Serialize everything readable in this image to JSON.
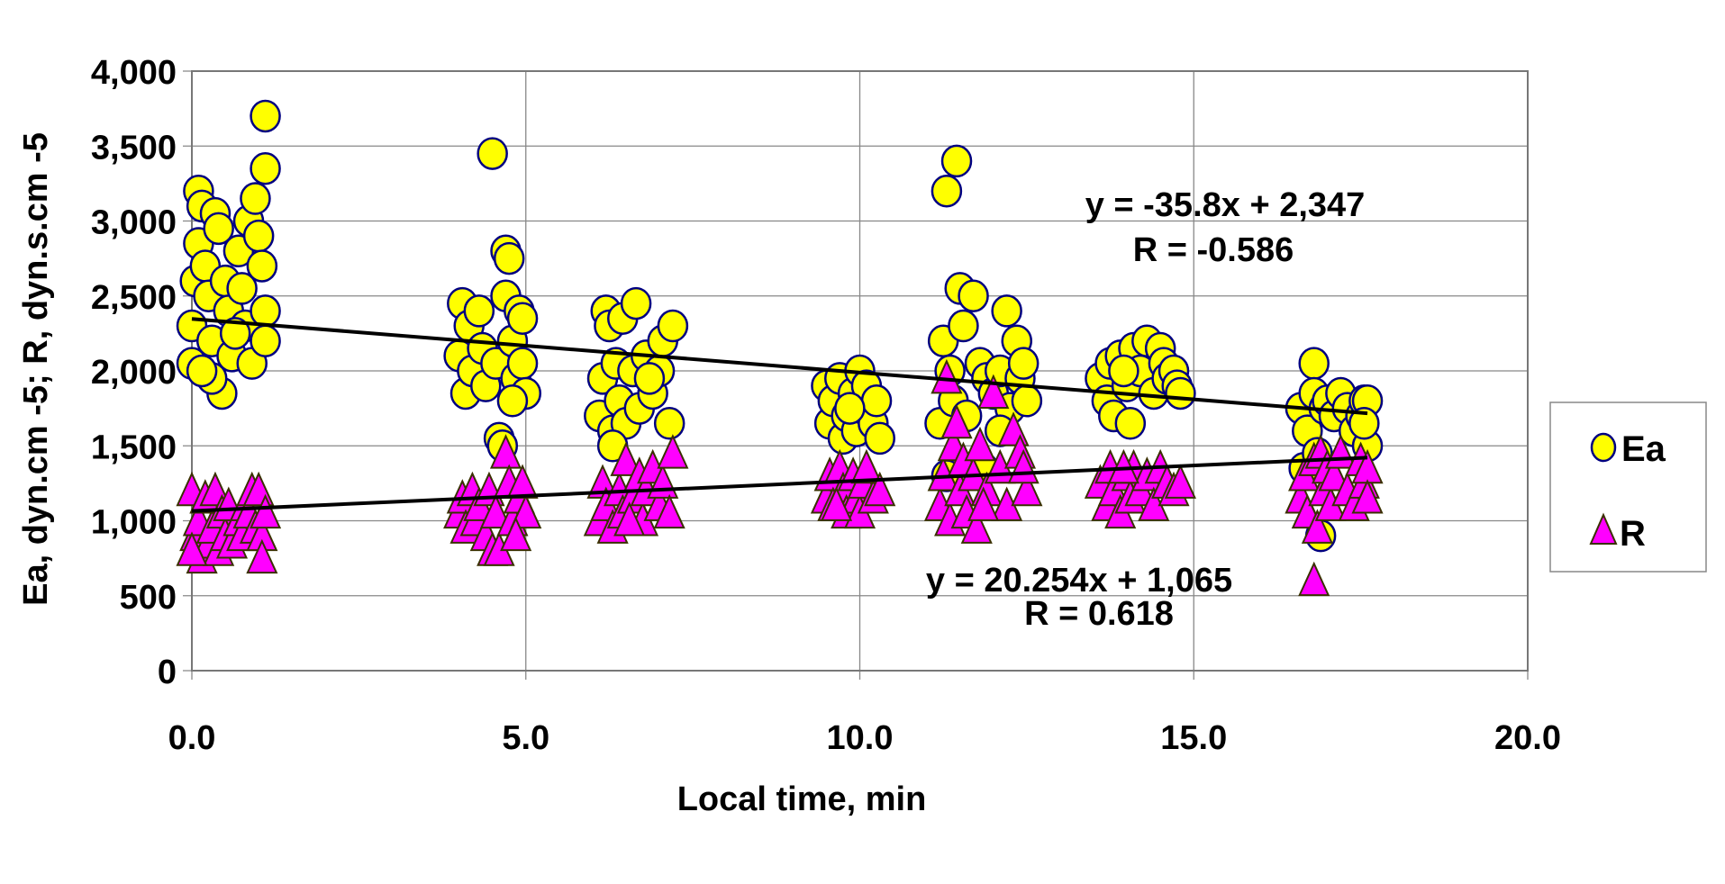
{
  "chart_data": {
    "type": "scatter",
    "title": "",
    "xlabel": "Local time, min",
    "ylabel": "Ea, dyn.cm -5; R, dyn.s.cm -5",
    "xlim": [
      0,
      20
    ],
    "ylim": [
      0,
      4000
    ],
    "grid": true,
    "legend_position": "right",
    "x_ticks": [
      "0.0",
      "5.0",
      "10.0",
      "15.0",
      "20.0"
    ],
    "y_ticks": [
      "0",
      "500",
      "1,000",
      "1,500",
      "2,000",
      "2,500",
      "3,000",
      "3,500",
      "4,000"
    ],
    "series": [
      {
        "name": "Ea",
        "marker": "circle",
        "color": "#ffff00",
        "edge": "#000080",
        "points": [
          [
            0,
            2300
          ],
          [
            0.05,
            2600
          ],
          [
            0.1,
            3200
          ],
          [
            0.15,
            3100
          ],
          [
            0.1,
            2850
          ],
          [
            0.2,
            2700
          ],
          [
            0.25,
            2500
          ],
          [
            0.3,
            2200
          ],
          [
            0.35,
            3050
          ],
          [
            0.4,
            2950
          ],
          [
            0.45,
            1850
          ],
          [
            0.3,
            1950
          ],
          [
            0.5,
            2600
          ],
          [
            0.55,
            2400
          ],
          [
            0.6,
            2100
          ],
          [
            0.7,
            2800
          ],
          [
            0.75,
            2550
          ],
          [
            0.8,
            2300
          ],
          [
            0.85,
            3000
          ],
          [
            0.9,
            2050
          ],
          [
            0.95,
            3150
          ],
          [
            1.0,
            2900
          ],
          [
            1.05,
            2700
          ],
          [
            1.1,
            3350
          ],
          [
            1.1,
            3700
          ],
          [
            1.1,
            2400
          ],
          [
            1.1,
            2200
          ],
          [
            0.0,
            2050
          ],
          [
            0.15,
            2000
          ],
          [
            0.65,
            2250
          ],
          [
            4.0,
            2100
          ],
          [
            4.05,
            2450
          ],
          [
            4.1,
            1850
          ],
          [
            4.15,
            2300
          ],
          [
            4.2,
            2000
          ],
          [
            4.3,
            2400
          ],
          [
            4.35,
            2150
          ],
          [
            4.4,
            1900
          ],
          [
            4.5,
            3450
          ],
          [
            4.55,
            2050
          ],
          [
            4.6,
            1550
          ],
          [
            4.65,
            1500
          ],
          [
            4.7,
            2800
          ],
          [
            4.75,
            2750
          ],
          [
            4.7,
            2500
          ],
          [
            4.8,
            2200
          ],
          [
            4.85,
            1950
          ],
          [
            4.9,
            2400
          ],
          [
            4.95,
            2350
          ],
          [
            4.95,
            2050
          ],
          [
            5.0,
            1850
          ],
          [
            4.8,
            1800
          ],
          [
            6.1,
            1700
          ],
          [
            6.15,
            1950
          ],
          [
            6.2,
            2400
          ],
          [
            6.25,
            2300
          ],
          [
            6.3,
            1600
          ],
          [
            6.35,
            2050
          ],
          [
            6.4,
            1800
          ],
          [
            6.45,
            2350
          ],
          [
            6.5,
            1650
          ],
          [
            6.6,
            2000
          ],
          [
            6.65,
            2450
          ],
          [
            6.7,
            1750
          ],
          [
            6.8,
            2100
          ],
          [
            6.9,
            1850
          ],
          [
            7.0,
            2000
          ],
          [
            7.05,
            2200
          ],
          [
            7.15,
            1650
          ],
          [
            7.2,
            2300
          ],
          [
            6.3,
            1500
          ],
          [
            6.85,
            1950
          ],
          [
            9.5,
            1900
          ],
          [
            9.55,
            1650
          ],
          [
            9.6,
            1800
          ],
          [
            9.7,
            1950
          ],
          [
            9.75,
            1550
          ],
          [
            9.8,
            1700
          ],
          [
            9.9,
            1850
          ],
          [
            9.95,
            1600
          ],
          [
            10.0,
            2000
          ],
          [
            10.05,
            1750
          ],
          [
            10.1,
            1900
          ],
          [
            10.2,
            1650
          ],
          [
            10.25,
            1800
          ],
          [
            10.3,
            1550
          ],
          [
            9.85,
            1750
          ],
          [
            11.2,
            1650
          ],
          [
            11.25,
            2200
          ],
          [
            11.3,
            3200
          ],
          [
            11.35,
            2000
          ],
          [
            11.4,
            1800
          ],
          [
            11.45,
            3400
          ],
          [
            11.5,
            2550
          ],
          [
            11.55,
            2300
          ],
          [
            11.6,
            1700
          ],
          [
            11.7,
            2500
          ],
          [
            11.8,
            2050
          ],
          [
            11.85,
            1350
          ],
          [
            11.9,
            1950
          ],
          [
            12.0,
            1850
          ],
          [
            12.1,
            2000
          ],
          [
            12.2,
            2400
          ],
          [
            12.25,
            1750
          ],
          [
            12.35,
            2200
          ],
          [
            12.4,
            1950
          ],
          [
            12.45,
            2050
          ],
          [
            12.5,
            1800
          ],
          [
            11.3,
            1300
          ],
          [
            12.1,
            1600
          ],
          [
            13.6,
            1950
          ],
          [
            13.7,
            1800
          ],
          [
            13.75,
            2050
          ],
          [
            13.8,
            1700
          ],
          [
            13.9,
            2100
          ],
          [
            14.0,
            1900
          ],
          [
            14.05,
            1650
          ],
          [
            14.1,
            2150
          ],
          [
            14.2,
            2000
          ],
          [
            14.3,
            2200
          ],
          [
            14.4,
            1850
          ],
          [
            14.5,
            2150
          ],
          [
            14.55,
            2050
          ],
          [
            14.6,
            1950
          ],
          [
            14.7,
            2000
          ],
          [
            14.75,
            1900
          ],
          [
            14.8,
            1850
          ],
          [
            13.95,
            2000
          ],
          [
            16.6,
            1750
          ],
          [
            16.65,
            1350
          ],
          [
            16.7,
            1600
          ],
          [
            16.8,
            2050
          ],
          [
            16.8,
            1850
          ],
          [
            16.85,
            1450
          ],
          [
            16.9,
            900
          ],
          [
            16.95,
            1750
          ],
          [
            17.0,
            1800
          ],
          [
            17.1,
            1700
          ],
          [
            17.2,
            1850
          ],
          [
            17.3,
            1750
          ],
          [
            17.4,
            1600
          ],
          [
            17.5,
            1700
          ],
          [
            17.55,
            1800
          ],
          [
            17.6,
            1800
          ],
          [
            17.6,
            1500
          ],
          [
            17.55,
            1650
          ]
        ],
        "trendline": {
          "slope": -35.8,
          "intercept": 2347,
          "x_range": [
            0,
            17.6
          ],
          "equation": "y = -35.8x + 2,347",
          "r_label": "R = -0.586"
        }
      },
      {
        "name": "R",
        "marker": "triangle",
        "color": "#ff00ff",
        "edge": "#3a3000",
        "points": [
          [
            0,
            1200
          ],
          [
            0.05,
            900
          ],
          [
            0.1,
            1000
          ],
          [
            0.15,
            750
          ],
          [
            0.2,
            1150
          ],
          [
            0.25,
            850
          ],
          [
            0.3,
            950
          ],
          [
            0.35,
            1200
          ],
          [
            0.4,
            800
          ],
          [
            0.45,
            1050
          ],
          [
            0.5,
            900
          ],
          [
            0.55,
            1100
          ],
          [
            0.6,
            850
          ],
          [
            0.7,
            1000
          ],
          [
            0.75,
            900
          ],
          [
            0.8,
            1100
          ],
          [
            0.85,
            1050
          ],
          [
            0.9,
            1200
          ],
          [
            0.95,
            950
          ],
          [
            1.0,
            1200
          ],
          [
            1.05,
            900
          ],
          [
            1.05,
            750
          ],
          [
            0.0,
            800
          ],
          [
            1.1,
            1050
          ],
          [
            4.0,
            1050
          ],
          [
            4.05,
            1150
          ],
          [
            4.1,
            950
          ],
          [
            4.2,
            1200
          ],
          [
            4.25,
            1000
          ],
          [
            4.3,
            1100
          ],
          [
            4.4,
            900
          ],
          [
            4.45,
            1200
          ],
          [
            4.5,
            800
          ],
          [
            4.55,
            1050
          ],
          [
            4.6,
            800
          ],
          [
            4.7,
            1450
          ],
          [
            4.75,
            1250
          ],
          [
            4.8,
            1000
          ],
          [
            4.9,
            1150
          ],
          [
            4.95,
            1250
          ],
          [
            5.0,
            1050
          ],
          [
            4.85,
            900
          ],
          [
            6.1,
            1000
          ],
          [
            6.15,
            1250
          ],
          [
            6.2,
            1100
          ],
          [
            6.3,
            950
          ],
          [
            6.4,
            1200
          ],
          [
            6.45,
            1050
          ],
          [
            6.5,
            1400
          ],
          [
            6.6,
            1150
          ],
          [
            6.7,
            1300
          ],
          [
            6.75,
            1000
          ],
          [
            6.8,
            1200
          ],
          [
            6.9,
            1350
          ],
          [
            7.0,
            1100
          ],
          [
            7.05,
            1250
          ],
          [
            7.15,
            1050
          ],
          [
            7.2,
            1450
          ],
          [
            6.55,
            1000
          ],
          [
            9.5,
            1150
          ],
          [
            9.55,
            1300
          ],
          [
            9.6,
            1100
          ],
          [
            9.7,
            1350
          ],
          [
            9.75,
            1200
          ],
          [
            9.8,
            1050
          ],
          [
            9.9,
            1300
          ],
          [
            9.95,
            1150
          ],
          [
            10.0,
            1050
          ],
          [
            10.05,
            1250
          ],
          [
            10.1,
            1350
          ],
          [
            10.2,
            1150
          ],
          [
            10.3,
            1200
          ],
          [
            9.65,
            1100
          ],
          [
            11.2,
            1100
          ],
          [
            11.25,
            1300
          ],
          [
            11.3,
            1950
          ],
          [
            11.35,
            1000
          ],
          [
            11.4,
            1500
          ],
          [
            11.45,
            1650
          ],
          [
            11.5,
            1200
          ],
          [
            11.55,
            1400
          ],
          [
            11.6,
            1050
          ],
          [
            11.7,
            1300
          ],
          [
            11.75,
            950
          ],
          [
            11.8,
            1500
          ],
          [
            11.9,
            1200
          ],
          [
            12.0,
            1850
          ],
          [
            12.1,
            1350
          ],
          [
            12.2,
            1100
          ],
          [
            12.3,
            1600
          ],
          [
            12.4,
            1450
          ],
          [
            12.5,
            1200
          ],
          [
            12.45,
            1350
          ],
          [
            11.85,
            1100
          ],
          [
            13.6,
            1250
          ],
          [
            13.7,
            1100
          ],
          [
            13.75,
            1350
          ],
          [
            13.8,
            1200
          ],
          [
            13.9,
            1050
          ],
          [
            14.0,
            1300
          ],
          [
            14.05,
            1150
          ],
          [
            14.1,
            1350
          ],
          [
            14.2,
            1200
          ],
          [
            14.3,
            1300
          ],
          [
            14.4,
            1100
          ],
          [
            14.5,
            1350
          ],
          [
            14.6,
            1250
          ],
          [
            14.7,
            1200
          ],
          [
            14.8,
            1250
          ],
          [
            13.95,
            1350
          ],
          [
            16.6,
            1150
          ],
          [
            16.65,
            1300
          ],
          [
            16.7,
            1050
          ],
          [
            16.8,
            600
          ],
          [
            16.8,
            1400
          ],
          [
            16.85,
            950
          ],
          [
            16.9,
            1450
          ],
          [
            16.95,
            1200
          ],
          [
            17.0,
            1350
          ],
          [
            17.05,
            1100
          ],
          [
            17.1,
            1300
          ],
          [
            17.2,
            1450
          ],
          [
            17.3,
            1200
          ],
          [
            17.4,
            1100
          ],
          [
            17.5,
            1400
          ],
          [
            17.55,
            1250
          ],
          [
            17.6,
            1350
          ],
          [
            17.6,
            1150
          ]
        ],
        "trendline": {
          "slope": 20.254,
          "intercept": 1065,
          "x_range": [
            0,
            17.6
          ],
          "equation": "y = 20.254x + 1,065",
          "r_label": "R = 0.618"
        }
      }
    ]
  }
}
